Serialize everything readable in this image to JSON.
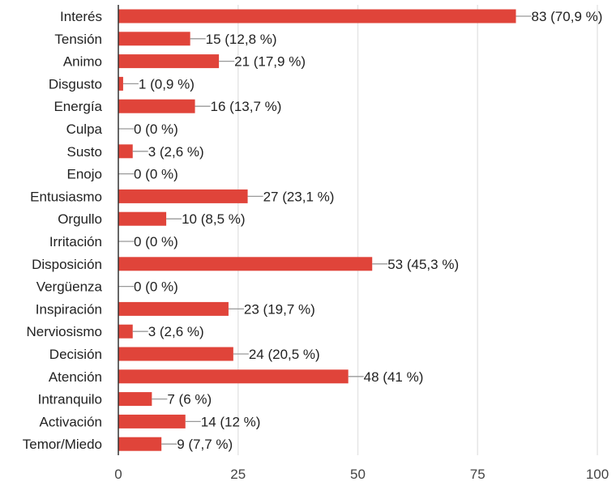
{
  "chart_data": {
    "type": "bar",
    "orientation": "horizontal",
    "categories": [
      "Interés",
      "Tensión",
      "Animo",
      "Disgusto",
      "Energía",
      "Culpa",
      "Susto",
      "Enojo",
      "Entusiasmo",
      "Orgullo",
      "Irritación",
      "Disposición",
      "Vergüenza",
      "Inspiración",
      "Nerviosismo",
      "Decisión",
      "Atención",
      "Intranquilo",
      "Activación",
      "Temor/Miedo"
    ],
    "values": [
      83,
      15,
      21,
      1,
      16,
      0,
      3,
      0,
      27,
      10,
      0,
      53,
      0,
      23,
      3,
      24,
      48,
      7,
      14,
      9
    ],
    "value_labels": [
      "83 (70,9 %)",
      "15 (12,8 %)",
      "21 (17,9 %)",
      "1 (0,9 %)",
      "16 (13,7 %)",
      "0 (0 %)",
      "3 (2,6 %)",
      "0 (0 %)",
      "27 (23,1 %)",
      "10 (8,5 %)",
      "0 (0 %)",
      "53 (45,3 %)",
      "0 (0 %)",
      "23 (19,7 %)",
      "3 (2,6 %)",
      "24 (20,5 %)",
      "48 (41 %)",
      "7 (6 %)",
      "14 (12 %)",
      "9 (7,7 %)"
    ],
    "xlim": [
      0,
      100
    ],
    "xticks": [
      0,
      25,
      50,
      75,
      100
    ],
    "xtick_labels": [
      "0",
      "25",
      "50",
      "75",
      "100"
    ],
    "grid": true,
    "legend": "none",
    "colors": {
      "bar": "#e0443a",
      "grid": "#e6e6e6",
      "axis": "#333333",
      "leader": "#999999"
    }
  }
}
